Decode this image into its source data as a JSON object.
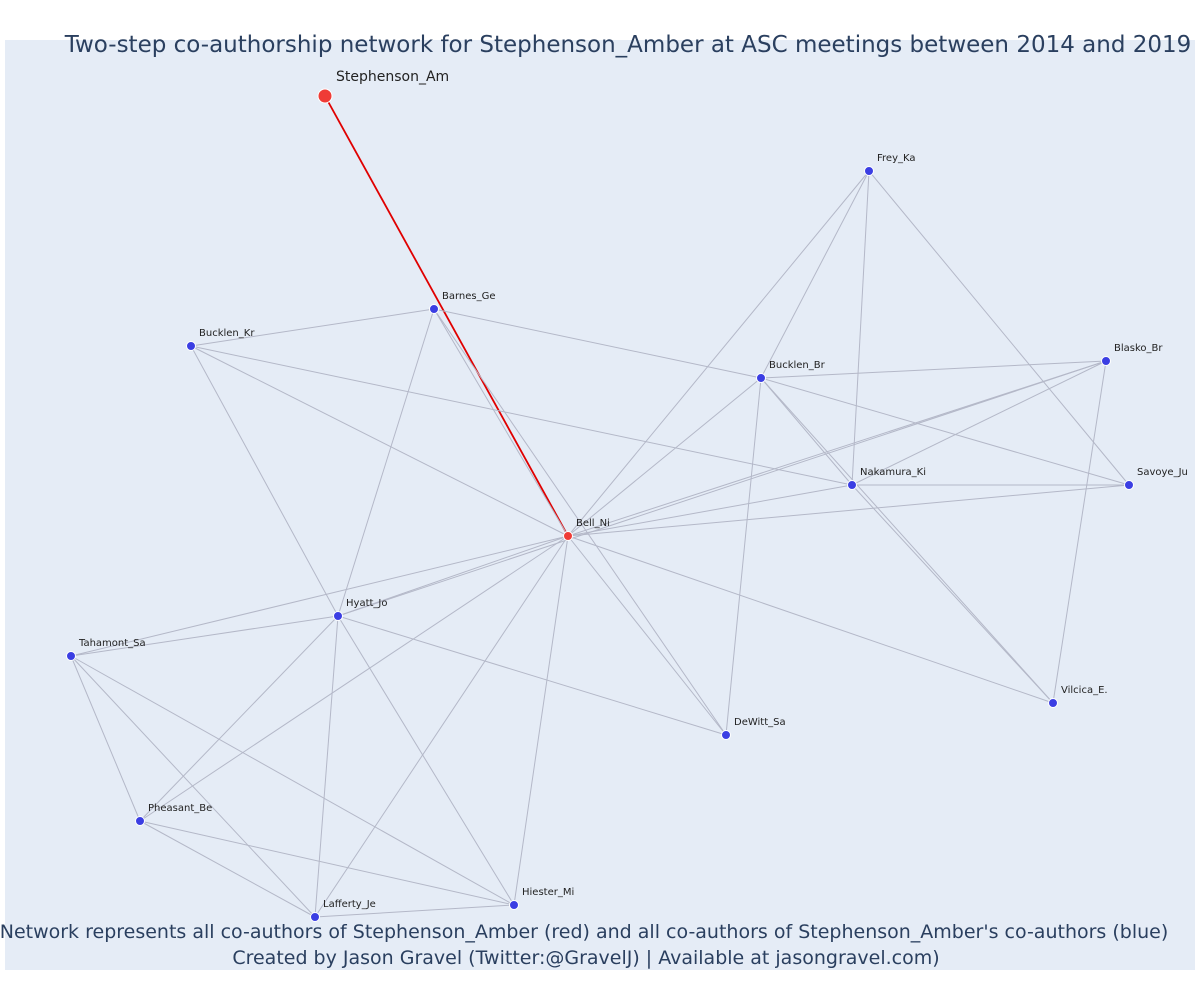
{
  "title": "Two-step co-authorship network for Stephenson_Amber at ASC meetings between 2014 and 2019",
  "caption_line1": "Network represents all co-authors of Stephenson_Amber (red) and all co-authors of Stephenson_Amber's co-authors (blue)",
  "caption_line2": "Created by Jason Gravel (Twitter:@GravelJ) | Available at jasongravel.com)",
  "colors": {
    "background": "#e5ecf6",
    "focal": "#ef3b36",
    "coauthor": "#ef3b36",
    "second_step": "#3b3ee3",
    "edge": "#b4b8c8",
    "focal_edge": "#e00000"
  },
  "nodes": [
    {
      "id": "Stephenson_Am",
      "type": "focal"
    },
    {
      "id": "Bell_Ni",
      "type": "coauthor"
    },
    {
      "id": "Barnes_Ge",
      "type": "second"
    },
    {
      "id": "Bucklen_Kr",
      "type": "second"
    },
    {
      "id": "Frey_Ka",
      "type": "second"
    },
    {
      "id": "Bucklen_Br",
      "type": "second"
    },
    {
      "id": "Blasko_Br",
      "type": "second"
    },
    {
      "id": "Nakamura_Ki",
      "type": "second"
    },
    {
      "id": "Savoye_Ju",
      "type": "second"
    },
    {
      "id": "Hyatt_Jo",
      "type": "second"
    },
    {
      "id": "Tahamont_Sa",
      "type": "second"
    },
    {
      "id": "Vilcica_E.",
      "type": "second"
    },
    {
      "id": "DeWitt_Sa",
      "type": "second"
    },
    {
      "id": "Pheasant_Be",
      "type": "second"
    },
    {
      "id": "Hiester_Mi",
      "type": "second"
    },
    {
      "id": "Lafferty_Je",
      "type": "second"
    }
  ],
  "edges": [
    [
      "Stephenson_Am",
      "Bell_Ni"
    ],
    [
      "Bell_Ni",
      "Barnes_Ge"
    ],
    [
      "Bell_Ni",
      "Bucklen_Kr"
    ],
    [
      "Bell_Ni",
      "Frey_Ka"
    ],
    [
      "Bell_Ni",
      "Bucklen_Br"
    ],
    [
      "Bell_Ni",
      "Blasko_Br"
    ],
    [
      "Bell_Ni",
      "Nakamura_Ki"
    ],
    [
      "Bell_Ni",
      "Savoye_Ju"
    ],
    [
      "Bell_Ni",
      "Hyatt_Jo"
    ],
    [
      "Bell_Ni",
      "Tahamont_Sa"
    ],
    [
      "Bell_Ni",
      "Vilcica_E."
    ],
    [
      "Bell_Ni",
      "DeWitt_Sa"
    ],
    [
      "Bell_Ni",
      "Pheasant_Be"
    ],
    [
      "Bell_Ni",
      "Hiester_Mi"
    ],
    [
      "Bell_Ni",
      "Lafferty_Je"
    ],
    [
      "Barnes_Ge",
      "Bucklen_Kr"
    ],
    [
      "Barnes_Ge",
      "Bucklen_Br"
    ],
    [
      "Barnes_Ge",
      "Hyatt_Jo"
    ],
    [
      "Barnes_Ge",
      "DeWitt_Sa"
    ],
    [
      "Bucklen_Kr",
      "Nakamura_Ki"
    ],
    [
      "Bucklen_Kr",
      "Hyatt_Jo"
    ],
    [
      "Frey_Ka",
      "Bucklen_Br"
    ],
    [
      "Frey_Ka",
      "Nakamura_Ki"
    ],
    [
      "Frey_Ka",
      "Savoye_Ju"
    ],
    [
      "Bucklen_Br",
      "Blasko_Br"
    ],
    [
      "Bucklen_Br",
      "Nakamura_Ki"
    ],
    [
      "Bucklen_Br",
      "Savoye_Ju"
    ],
    [
      "Bucklen_Br",
      "Vilcica_E."
    ],
    [
      "Bucklen_Br",
      "DeWitt_Sa"
    ],
    [
      "Blasko_Br",
      "Nakamura_Ki"
    ],
    [
      "Blasko_Br",
      "Hyatt_Jo"
    ],
    [
      "Blasko_Br",
      "Vilcica_E."
    ],
    [
      "Nakamura_Ki",
      "Savoye_Ju"
    ],
    [
      "Nakamura_Ki",
      "Vilcica_E."
    ],
    [
      "Hyatt_Jo",
      "Tahamont_Sa"
    ],
    [
      "Hyatt_Jo",
      "DeWitt_Sa"
    ],
    [
      "Hyatt_Jo",
      "Pheasant_Be"
    ],
    [
      "Hyatt_Jo",
      "Hiester_Mi"
    ],
    [
      "Hyatt_Jo",
      "Lafferty_Je"
    ],
    [
      "Tahamont_Sa",
      "Pheasant_Be"
    ],
    [
      "Tahamont_Sa",
      "Hiester_Mi"
    ],
    [
      "Tahamont_Sa",
      "Lafferty_Je"
    ],
    [
      "Pheasant_Be",
      "Hiester_Mi"
    ],
    [
      "Pheasant_Be",
      "Lafferty_Je"
    ],
    [
      "Hiester_Mi",
      "Lafferty_Je"
    ]
  ]
}
